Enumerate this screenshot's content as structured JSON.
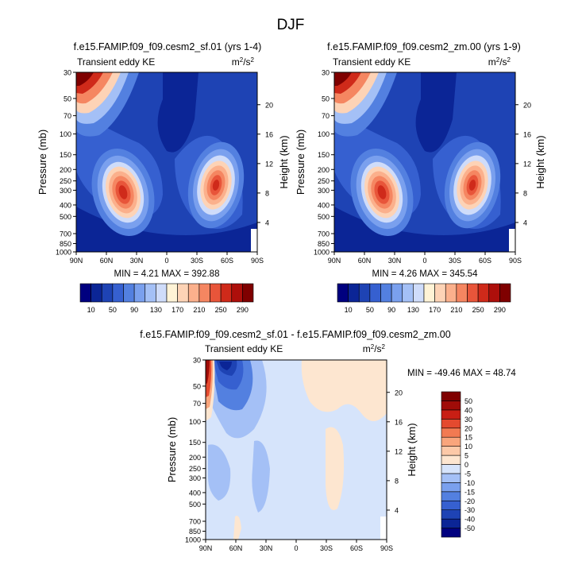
{
  "page_title": "DJF",
  "chart_data": [
    {
      "type": "heatmap",
      "title": "f.e15.FAMIP.f09_f09.cesm2_sf.01 (yrs 1-4)",
      "left_label": "Transient eddy KE",
      "units": "m²/s²",
      "xlabel": "",
      "ylabel": "Pressure (mb)",
      "y2label": "Height (km)",
      "x_ticks": [
        "90N",
        "60N",
        "30N",
        "0",
        "30S",
        "60S",
        "90S"
      ],
      "y_ticks": [
        30,
        50,
        70,
        100,
        150,
        200,
        250,
        300,
        400,
        500,
        700,
        850,
        1000
      ],
      "y2_ticks": [
        4,
        8,
        12,
        16,
        20
      ],
      "min_max_text": "MIN =   4.21   MAX = 392.88",
      "min": 4.21,
      "max": 392.88,
      "colorbar": {
        "levels": [
          10,
          30,
          50,
          70,
          90,
          110,
          130,
          150,
          170,
          190,
          210,
          230,
          250,
          270,
          290
        ],
        "labels": [
          "10",
          "50",
          "90",
          "130",
          "170",
          "210",
          "250",
          "290"
        ],
        "colors": [
          "#00007f",
          "#0b2596",
          "#1e43b4",
          "#3660d0",
          "#5380e0",
          "#7aa0ee",
          "#a4c0f6",
          "#cfdcfa",
          "#fff3d6",
          "#fdd3b6",
          "#fbb08c",
          "#f58661",
          "#e8553a",
          "#cf2a1a",
          "#ad0f0b",
          "#7f0000"
        ]
      },
      "features": [
        {
          "name": "NH polar stratosphere max",
          "lat": 85,
          "p": 30,
          "value": 390
        },
        {
          "name": "NH midlatitude jet max",
          "lat": 35,
          "p": 280,
          "value": 290
        },
        {
          "name": "SH midlatitude jet max",
          "lat": -50,
          "p": 280,
          "value": 280
        }
      ]
    },
    {
      "type": "heatmap",
      "title": "f.e15.FAMIP.f09_f09.cesm2_zm.00 (yrs 1-9)",
      "left_label": "Transient eddy KE",
      "units": "m²/s²",
      "xlabel": "",
      "ylabel": "Pressure (mb)",
      "y2label": "Height (km)",
      "x_ticks": [
        "90N",
        "60N",
        "30N",
        "0",
        "30S",
        "60S",
        "90S"
      ],
      "y_ticks": [
        30,
        50,
        70,
        100,
        150,
        200,
        250,
        300,
        400,
        500,
        700,
        850,
        1000
      ],
      "y2_ticks": [
        4,
        8,
        12,
        16,
        20
      ],
      "min_max_text": "MIN =   4.26   MAX = 345.54",
      "min": 4.26,
      "max": 345.54,
      "colorbar": {
        "levels": [
          10,
          30,
          50,
          70,
          90,
          110,
          130,
          150,
          170,
          190,
          210,
          230,
          250,
          270,
          290
        ],
        "labels": [
          "10",
          "50",
          "90",
          "130",
          "170",
          "210",
          "250",
          "290"
        ],
        "colors": [
          "#00007f",
          "#0b2596",
          "#1e43b4",
          "#3660d0",
          "#5380e0",
          "#7aa0ee",
          "#a4c0f6",
          "#cfdcfa",
          "#fff3d6",
          "#fdd3b6",
          "#fbb08c",
          "#f58661",
          "#e8553a",
          "#cf2a1a",
          "#ad0f0b",
          "#7f0000"
        ]
      },
      "features": [
        {
          "name": "NH polar stratosphere max",
          "lat": 85,
          "p": 30,
          "value": 345
        },
        {
          "name": "NH midlatitude jet max",
          "lat": 37,
          "p": 280,
          "value": 280
        },
        {
          "name": "SH midlatitude jet max",
          "lat": -50,
          "p": 290,
          "value": 270
        }
      ]
    },
    {
      "type": "heatmap",
      "title": "f.e15.FAMIP.f09_f09.cesm2_sf.01 - f.e15.FAMIP.f09_f09.cesm2_zm.00",
      "left_label": "Transient eddy KE",
      "units": "m²/s²",
      "xlabel": "",
      "ylabel": "Pressure (mb)",
      "y2label": "Height (km)",
      "x_ticks": [
        "90N",
        "60N",
        "30N",
        "0",
        "30S",
        "60S",
        "90S"
      ],
      "y_ticks": [
        30,
        50,
        70,
        100,
        150,
        200,
        250,
        300,
        400,
        500,
        700,
        850,
        1000
      ],
      "y2_ticks": [
        4,
        8,
        12,
        16,
        20
      ],
      "min_max_text": "MIN = -49.46   MAX =  48.74",
      "min": -49.46,
      "max": 48.74,
      "colorbar": {
        "levels": [
          -50,
          -40,
          -30,
          -20,
          -15,
          -10,
          -5,
          0,
          5,
          10,
          15,
          20,
          30,
          40,
          50
        ],
        "labels": [
          "-50",
          "-40",
          "-30",
          "-20",
          "-15",
          "-10",
          "-5",
          "0",
          "5",
          "10",
          "15",
          "20",
          "30",
          "40",
          "50"
        ],
        "colors": [
          "#00007f",
          "#0b2596",
          "#1e43b4",
          "#3660d0",
          "#5380e0",
          "#7aa0ee",
          "#a4c0f6",
          "#d6e4fb",
          "#fde6d0",
          "#fcc9a8",
          "#f9a57c",
          "#f27a52",
          "#e44a2f",
          "#c81f14",
          "#a00c08",
          "#7f0000"
        ]
      },
      "features": [
        {
          "name": "NH polar positive",
          "lat": 87,
          "p": 35,
          "value": 48
        },
        {
          "name": "NH subpolar negative",
          "lat": 78,
          "p": 40,
          "value": -45
        }
      ]
    }
  ]
}
